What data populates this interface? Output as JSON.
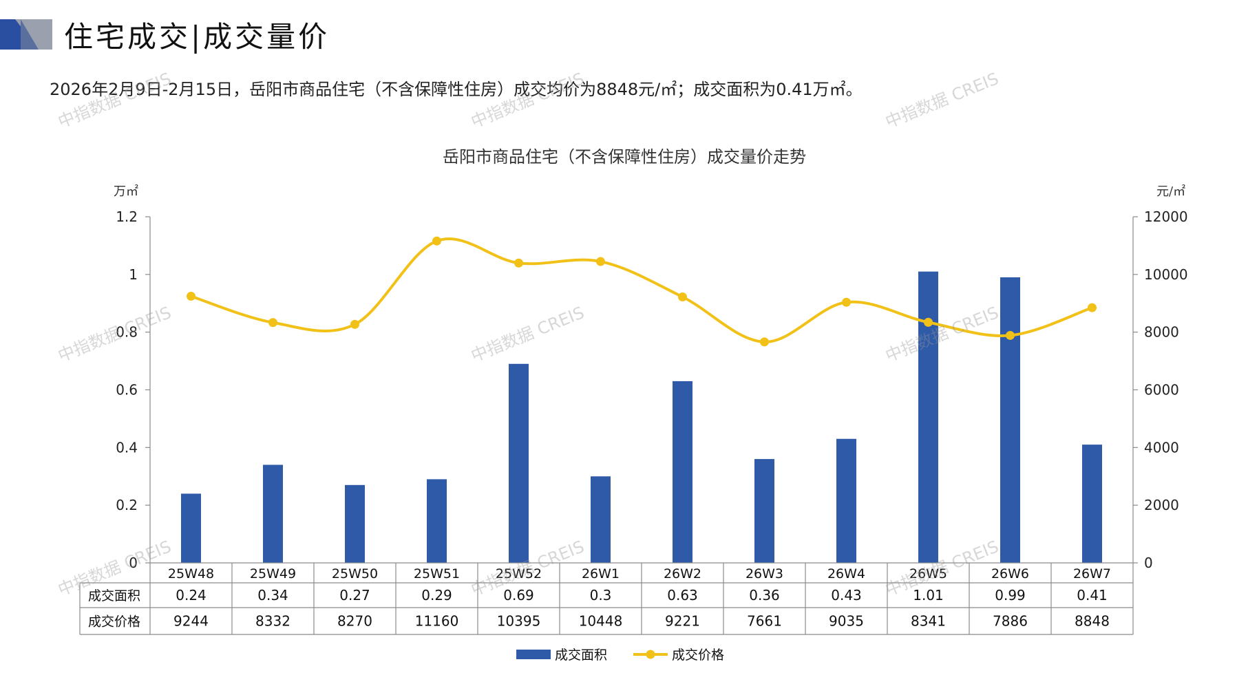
{
  "header": {
    "title": "住宅成交|成交量价",
    "summary": "2026年2月9日-2月15日，岳阳市商品住宅（不含保障性住房）成交均价为8848元/㎡；成交面积为0.41万㎡。"
  },
  "watermark": "中指数据 CREIS",
  "colors": {
    "bar": "#2E5AA8",
    "line": "#F2C118",
    "logo_dark": "#2B4FA0",
    "logo_grey": "#9AA0AE"
  },
  "chart_data": {
    "type": "bar+line",
    "title": "岳阳市商品住宅（不含保障性住房）成交量价走势",
    "categories": [
      "25W48",
      "25W49",
      "25W50",
      "25W51",
      "25W52",
      "26W1",
      "26W2",
      "26W3",
      "26W4",
      "26W5",
      "26W6",
      "26W7"
    ],
    "series": [
      {
        "name": "成交面积",
        "type": "bar",
        "axis": "left",
        "values": [
          0.24,
          0.34,
          0.27,
          0.29,
          0.69,
          0.3,
          0.63,
          0.36,
          0.43,
          1.01,
          0.99,
          0.41
        ],
        "labels": [
          "0.24",
          "0.34",
          "0.27",
          "0.29",
          "0.69",
          "0.3",
          "0.63",
          "0.36",
          "0.43",
          "1.01",
          "0.99",
          "0.41"
        ]
      },
      {
        "name": "成交价格",
        "type": "line",
        "axis": "right",
        "values": [
          9244,
          8332,
          8270,
          11160,
          10395,
          10448,
          9221,
          7661,
          9035,
          8341,
          7886,
          8848
        ],
        "labels": [
          "9244",
          "8332",
          "8270",
          "11160",
          "10395",
          "10448",
          "9221",
          "7661",
          "9035",
          "8341",
          "7886",
          "8848"
        ]
      }
    ],
    "y_left": {
      "unit": "万㎡",
      "min": 0,
      "max": 1.2,
      "ticks": [
        "0",
        "0.2",
        "0.4",
        "0.6",
        "0.8",
        "1",
        "1.2"
      ]
    },
    "y_right": {
      "unit": "元/㎡",
      "min": 0,
      "max": 12000,
      "ticks": [
        "0",
        "2000",
        "4000",
        "6000",
        "8000",
        "10000",
        "12000"
      ]
    },
    "legend_position": "bottom",
    "data_table": true
  }
}
